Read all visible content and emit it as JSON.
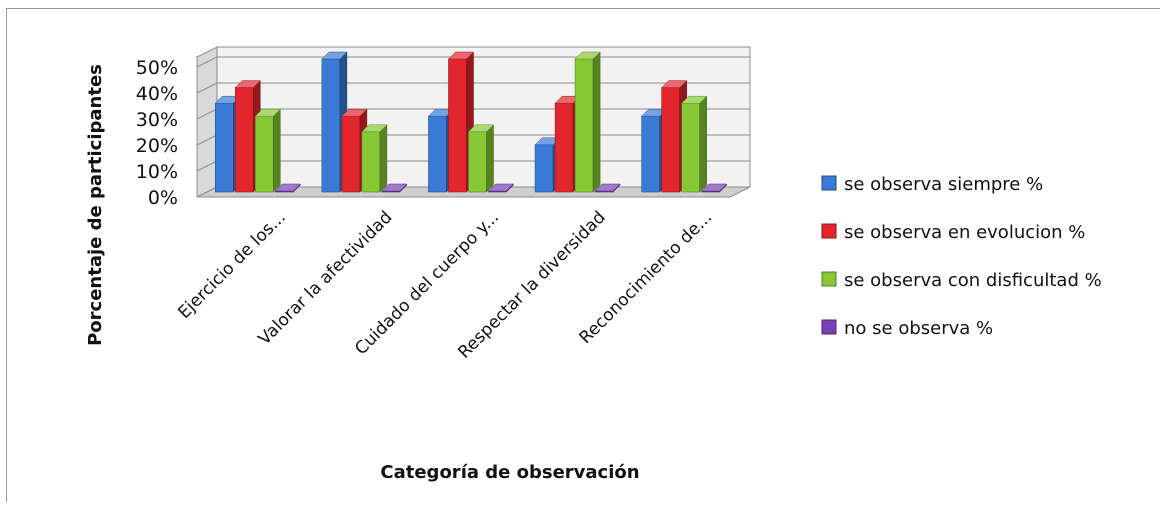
{
  "chart_data": {
    "type": "bar",
    "three_d": true,
    "ylabel": "Porcentaje de participantes",
    "xlabel": "Categoría de observación",
    "ylim": [
      0,
      0.5
    ],
    "yticks": [
      "0%",
      "10%",
      "20%",
      "30%",
      "40%",
      "50%"
    ],
    "ytick_values": [
      0,
      0.1,
      0.2,
      0.3,
      0.4,
      0.5
    ],
    "grid": true,
    "legend_position": "right",
    "categories": [
      "Ejercicio de los...",
      "Valorar la afectividad",
      "Cuidado del cuerpo y...",
      "Respectar la diversidad",
      "Reconocimiento de..."
    ],
    "series": [
      {
        "name": "se observa siempre %",
        "color": "#3a7bd5",
        "values": [
          0.33,
          0.5,
          0.28,
          0.17,
          0.28
        ]
      },
      {
        "name": "se observa en evolucion %",
        "color": "#e3262e",
        "values": [
          0.39,
          0.28,
          0.5,
          0.33,
          0.39
        ]
      },
      {
        "name": "se observa con disficultad %",
        "color": "#86c934",
        "values": [
          0.28,
          0.22,
          0.22,
          0.5,
          0.33
        ]
      },
      {
        "name": "no se observa %",
        "color": "#7a3fb0",
        "values": [
          0,
          0,
          0,
          0,
          0
        ]
      }
    ]
  }
}
